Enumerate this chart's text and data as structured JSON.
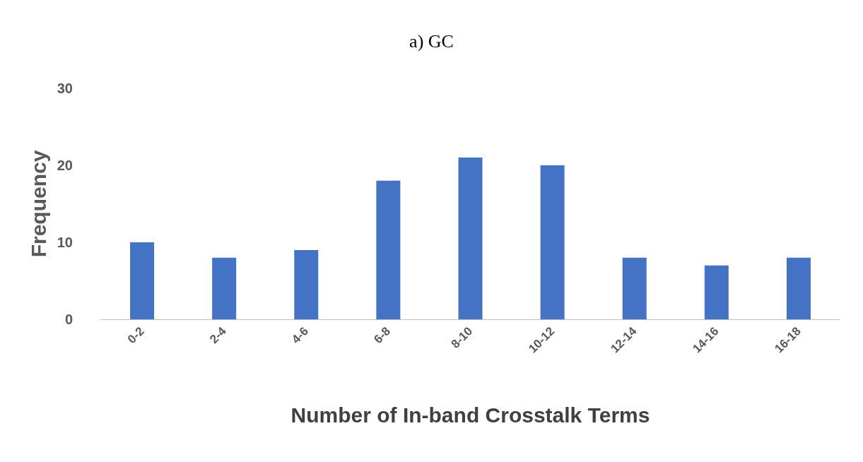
{
  "chart_data": {
    "type": "bar",
    "title": "a) GC",
    "xlabel": "Number of In-band Crosstalk Terms",
    "ylabel": "Frequency",
    "categories": [
      "0-2",
      "2-4",
      "4-6",
      "6-8",
      "8-10",
      "10-12",
      "12-14",
      "14-16",
      "16-18"
    ],
    "values": [
      10,
      8,
      9,
      18,
      21,
      20,
      8,
      7,
      8
    ],
    "color": "#4472c4",
    "ylim": [
      0,
      30
    ],
    "yticks": [
      0,
      10,
      20,
      30
    ],
    "grid": false
  }
}
